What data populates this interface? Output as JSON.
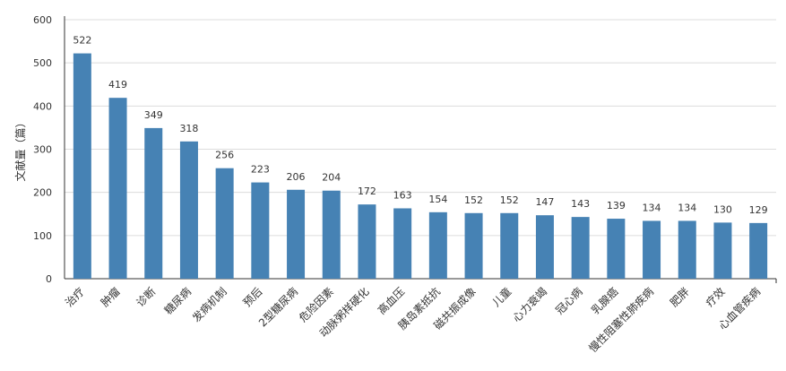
{
  "chart_data": {
    "type": "bar",
    "title": "",
    "xlabel": "",
    "ylabel": "文献量（篇）",
    "ylim": [
      0,
      600
    ],
    "yticks": [
      0,
      100,
      200,
      300,
      400,
      500,
      600
    ],
    "grid": true,
    "legend": "none",
    "bar_color": "#4682b4",
    "categories": [
      "治疗",
      "肿瘤",
      "诊断",
      "糖尿病",
      "发病机制",
      "预后",
      "2型糖尿病",
      "危险因素",
      "动脉粥样硬化",
      "高血压",
      "胰岛素抵抗",
      "磁共振成像",
      "儿童",
      "心力衰竭",
      "冠心病",
      "乳腺癌",
      "慢性阻塞性肺疾病",
      "肥胖",
      "疗效",
      "心血管疾病"
    ],
    "values": [
      522,
      419,
      349,
      318,
      256,
      223,
      206,
      204,
      172,
      163,
      154,
      152,
      152,
      147,
      143,
      139,
      134,
      134,
      130,
      129
    ]
  }
}
